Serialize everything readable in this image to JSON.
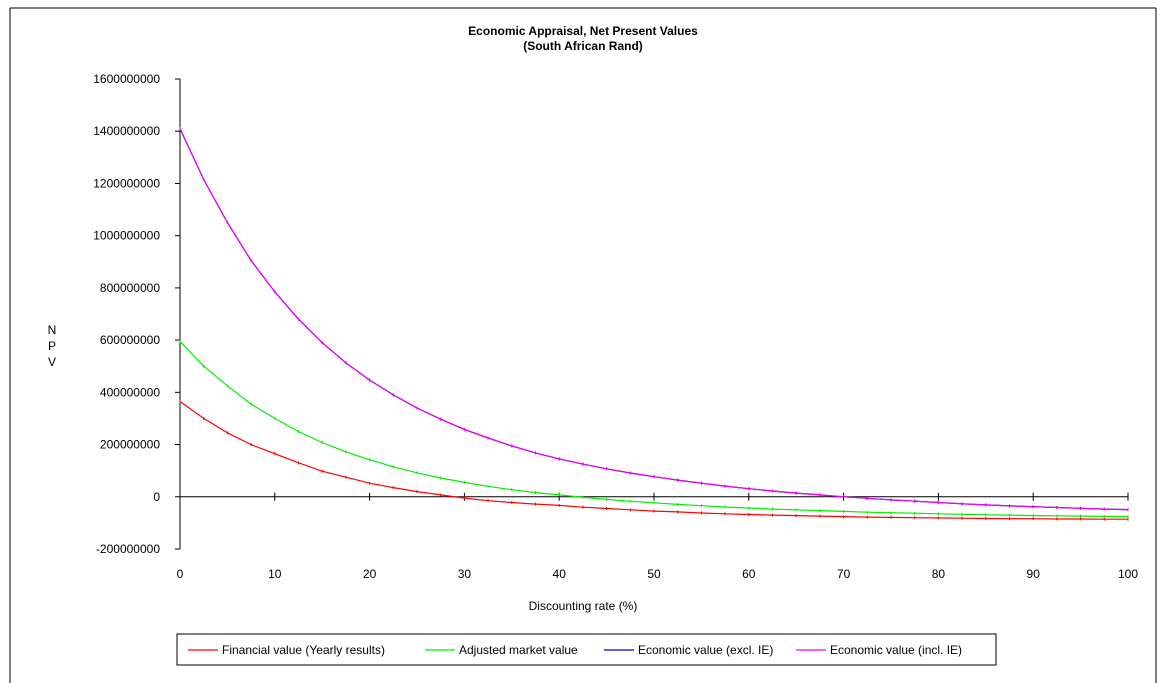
{
  "chart_data": {
    "type": "line",
    "title": "Economic Appraisal, Net Present Values",
    "subtitle": "(South African Rand)",
    "xlabel": "Discounting rate (%)",
    "ylabel": "NPV",
    "xlim": [
      0,
      100
    ],
    "ylim": [
      -200000000,
      1600000000
    ],
    "x_ticks": [
      0,
      10,
      20,
      30,
      40,
      50,
      60,
      70,
      80,
      90,
      100
    ],
    "y_ticks": [
      -200000000,
      0,
      200000000,
      400000000,
      600000000,
      800000000,
      1000000000,
      1200000000,
      1400000000,
      1600000000
    ],
    "legend_position": "bottom",
    "grid": false,
    "x": [
      0,
      2.5,
      5,
      7.5,
      10,
      12.5,
      15,
      17.5,
      20,
      22.5,
      25,
      27.5,
      30,
      32.5,
      35,
      37.5,
      40,
      42.5,
      45,
      47.5,
      50,
      52.5,
      55,
      57.5,
      60,
      62.5,
      65,
      67.5,
      70,
      72.5,
      75,
      77.5,
      80,
      82.5,
      85,
      87.5,
      90,
      92.5,
      95,
      97.5,
      100
    ],
    "series": [
      {
        "name": "Financial value (Yearly results)",
        "color": "#ff0000",
        "values": [
          365000000,
          300000000,
          245000000,
          200000000,
          165000000,
          130000000,
          98000000,
          75000000,
          52000000,
          35000000,
          20000000,
          7000000,
          -5000000,
          -15000000,
          -22000000,
          -28000000,
          -33000000,
          -40000000,
          -45000000,
          -50000000,
          -55000000,
          -58000000,
          -62000000,
          -65000000,
          -68000000,
          -70000000,
          -72000000,
          -74000000,
          -76000000,
          -78000000,
          -79000000,
          -80000000,
          -81000000,
          -82000000,
          -83000000,
          -84000000,
          -84000000,
          -85000000,
          -85000000,
          -86000000,
          -86000000
        ]
      },
      {
        "name": "Adjusted market value",
        "color": "#00ee00",
        "values": [
          595000000,
          500000000,
          425000000,
          355000000,
          300000000,
          250000000,
          208000000,
          172000000,
          142000000,
          115000000,
          92000000,
          72000000,
          55000000,
          40000000,
          27000000,
          16000000,
          7000000,
          -2000000,
          -10000000,
          -17000000,
          -23000000,
          -29000000,
          -34000000,
          -39000000,
          -43000000,
          -47000000,
          -50000000,
          -53000000,
          -56000000,
          -59000000,
          -61000000,
          -63000000,
          -65000000,
          -67000000,
          -69000000,
          -70000000,
          -72000000,
          -73000000,
          -74000000,
          -75000000,
          -76000000
        ]
      },
      {
        "name": "Economic value (excl. IE)",
        "color": "#0000cc",
        "values": [
          1410000000,
          1215000000,
          1050000000,
          905000000,
          785000000,
          680000000,
          590000000,
          513000000,
          447000000,
          390000000,
          340000000,
          297000000,
          258000000,
          225000000,
          195000000,
          168000000,
          145000000,
          125000000,
          107000000,
          91000000,
          77000000,
          64000000,
          52000000,
          41000000,
          31000000,
          22000000,
          14000000,
          7000000,
          0,
          -6000000,
          -12000000,
          -17000000,
          -22000000,
          -27000000,
          -31000000,
          -35000000,
          -38000000,
          -41000000,
          -44000000,
          -47000000,
          -49000000
        ]
      },
      {
        "name": "Economic value (incl. IE)",
        "color": "#ee00ee",
        "values": [
          1410000000,
          1215000000,
          1050000000,
          905000000,
          785000000,
          680000000,
          590000000,
          513000000,
          447000000,
          390000000,
          340000000,
          297000000,
          258000000,
          225000000,
          195000000,
          168000000,
          145000000,
          125000000,
          107000000,
          91000000,
          77000000,
          64000000,
          52000000,
          41000000,
          31000000,
          22000000,
          14000000,
          7000000,
          0,
          -6000000,
          -12000000,
          -17000000,
          -22000000,
          -27000000,
          -31000000,
          -35000000,
          -38000000,
          -41000000,
          -44000000,
          -47000000,
          -49000000
        ]
      }
    ]
  }
}
